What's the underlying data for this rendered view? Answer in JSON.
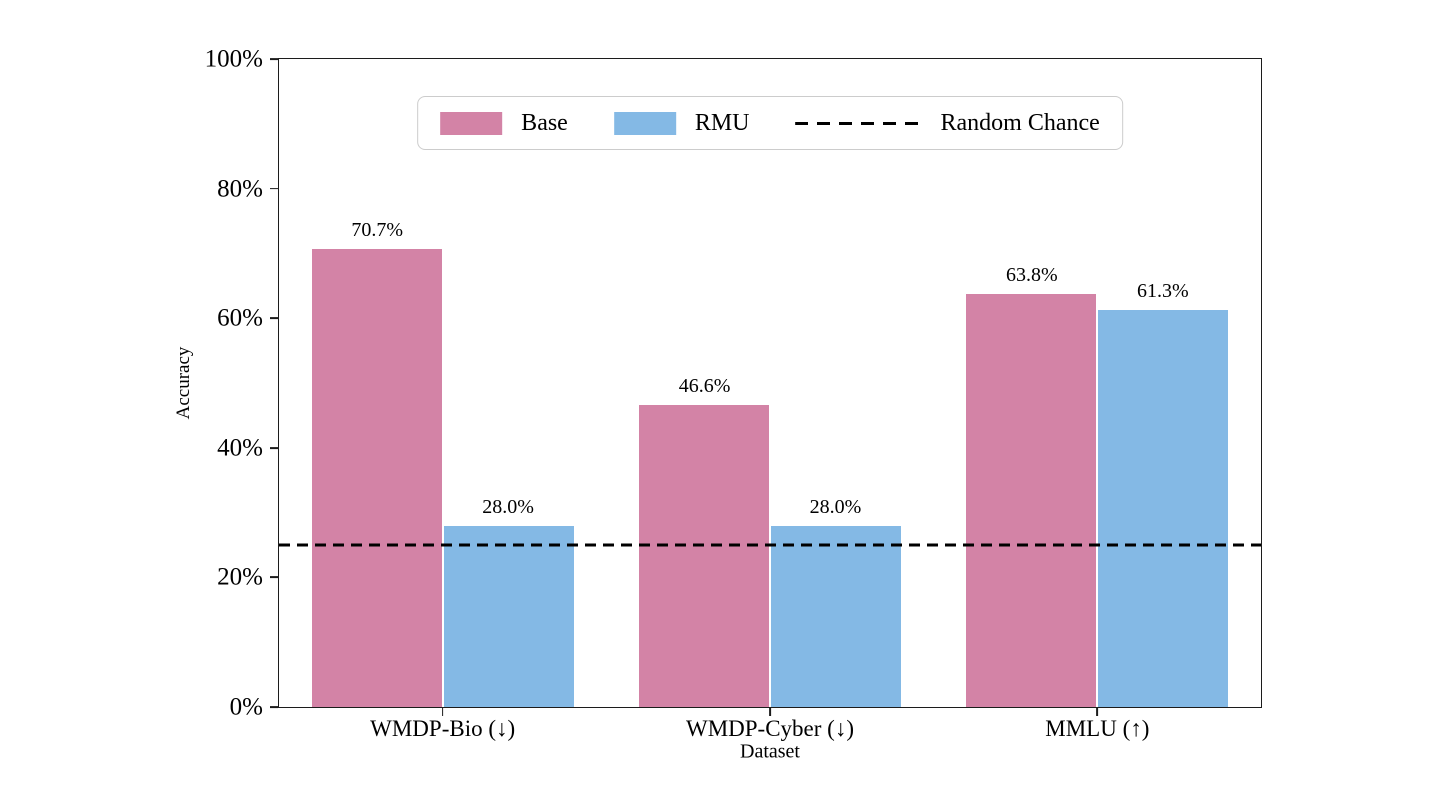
{
  "chart_data": {
    "type": "bar",
    "title": "",
    "xlabel": "Dataset",
    "ylabel": "Accuracy",
    "categories": [
      "WMDP-Bio (↓)",
      "WMDP-Cyber (↓)",
      "MMLU (↑)"
    ],
    "series": [
      {
        "name": "Base",
        "color": "#d383a6",
        "values": [
          70.7,
          46.6,
          63.8
        ],
        "bar_labels": [
          "70.7%",
          "46.6%",
          "63.8%"
        ]
      },
      {
        "name": "RMU",
        "color": "#84b9e5",
        "values": [
          28.0,
          28.0,
          61.3
        ],
        "bar_labels": [
          "28.0%",
          "28.0%",
          "61.3%"
        ]
      }
    ],
    "reference_line": {
      "name": "Random Chance",
      "value": 25,
      "color": "#000000",
      "style": "dashed"
    },
    "ylim": [
      0,
      100
    ],
    "yticks": [
      0,
      20,
      40,
      60,
      80,
      100
    ],
    "ytick_labels": [
      "0%",
      "20%",
      "40%",
      "60%",
      "80%",
      "100%"
    ],
    "bar_width_units": 0.4,
    "legend_position": "upper center",
    "grid": false,
    "background": "#ffffff",
    "spine_color": "#1c1c1c"
  }
}
